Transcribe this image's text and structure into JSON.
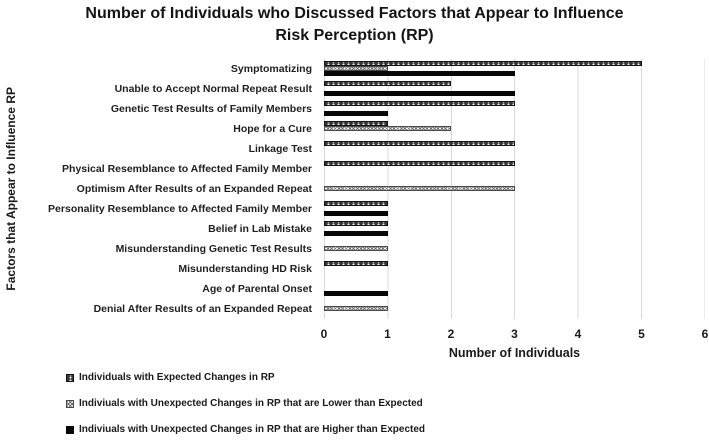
{
  "chart_data": {
    "type": "bar",
    "orientation": "horizontal",
    "title": "Number of Individuals who Discussed Factors that Appear to Influence Risk Perception (RP)",
    "xlabel": "Number of Individuals",
    "ylabel": "Factors that Appear to Influence RP",
    "xlim": [
      0,
      6
    ],
    "xticks": [
      0,
      1,
      2,
      3,
      4,
      5,
      6
    ],
    "grid": true,
    "legend_position": "bottom-left",
    "categories": [
      "Symptomatizing",
      "Unable to Accept Normal Repeat Result",
      "Genetic Test Results of Family Members",
      "Hope for a Cure",
      "Linkage Test",
      "Physical Resemblance to Affected Family Member",
      "Optimism After Results of an Expanded Repeat",
      "Personality Resemblance to Affected Family Member",
      "Belief in Lab Mistake",
      "Misunderstanding Genetic Test Results",
      "Misunderstanding HD Risk",
      "Age of Parental Onset",
      "Denial After Results of an Expanded Repeat"
    ],
    "series": [
      {
        "key": "expected",
        "name": "Individuals with Expected Changes in RP",
        "pattern": "dark-speckled",
        "values": [
          5,
          2,
          3,
          1,
          3,
          3,
          0,
          1,
          1,
          0,
          1,
          0,
          0
        ]
      },
      {
        "key": "lower",
        "name": "Indiviuals with Unexpected Changes in RP that are Lower than Expected",
        "pattern": "diagonal-crosshatch",
        "values": [
          1,
          0,
          0,
          2,
          0,
          0,
          3,
          0,
          0,
          1,
          0,
          0,
          1
        ]
      },
      {
        "key": "higher",
        "name": "Indiviuals with Unexpected Changes in RP that are Higher than Expected",
        "pattern": "solid-black",
        "values": [
          3,
          3,
          1,
          0,
          0,
          0,
          0,
          1,
          1,
          0,
          0,
          1,
          0
        ]
      }
    ],
    "colors": {
      "dark_fill": "#353535",
      "crosshatch_line": "#606060",
      "solid_black": "#070707",
      "gridline": "#d9d9d9",
      "text": "#1a1a1a"
    }
  }
}
